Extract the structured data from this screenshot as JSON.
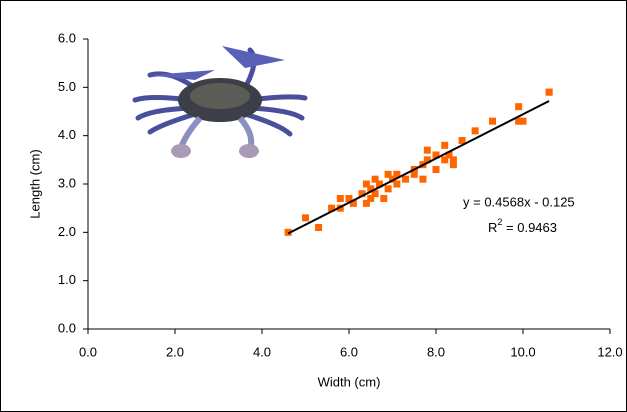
{
  "chart_data": {
    "type": "scatter",
    "x_label": "Width (cm)",
    "y_label": "Length (cm)",
    "x": [
      4.6,
      5.0,
      5.3,
      5.6,
      5.8,
      5.8,
      6.0,
      6.1,
      6.3,
      6.4,
      6.4,
      6.5,
      6.5,
      6.6,
      6.6,
      6.7,
      6.8,
      6.9,
      6.9,
      7.0,
      7.1,
      7.1,
      7.3,
      7.5,
      7.5,
      7.7,
      7.7,
      7.8,
      7.8,
      8.0,
      8.0,
      8.2,
      8.2,
      8.3,
      8.4,
      8.4,
      8.6,
      8.9,
      9.3,
      9.9,
      9.9,
      10.0,
      10.6,
      10.6
    ],
    "values": [
      2.0,
      2.3,
      2.1,
      2.5,
      2.5,
      2.7,
      2.7,
      2.6,
      2.8,
      2.6,
      3.0,
      2.7,
      2.9,
      3.1,
      2.8,
      3.0,
      2.7,
      3.2,
      2.9,
      3.1,
      3.0,
      3.2,
      3.1,
      3.3,
      3.2,
      3.1,
      3.4,
      3.7,
      3.5,
      3.3,
      3.6,
      3.8,
      3.5,
      3.6,
      3.4,
      3.5,
      3.9,
      4.1,
      4.3,
      4.6,
      4.3,
      4.3,
      4.9,
      4.9
    ],
    "color": "#ff6600",
    "trendline": {
      "slope": 0.4568,
      "intercept": -0.125,
      "color": "#000000",
      "equation": "y = 0.4568x - 0.125",
      "r2_base": "R",
      "r2_sup": "2",
      "r2_rest": " = 0.9463"
    },
    "xlim": [
      0,
      12
    ],
    "ylim": [
      0,
      6
    ],
    "xticks": [
      {
        "value": 0,
        "label": "0.0"
      },
      {
        "value": 2,
        "label": "2.0"
      },
      {
        "value": 4,
        "label": "4.0"
      },
      {
        "value": 6,
        "label": "6.0"
      },
      {
        "value": 8,
        "label": "8.0"
      },
      {
        "value": 10,
        "label": "10.0"
      },
      {
        "value": 12,
        "label": "12.0"
      }
    ],
    "yticks": [
      {
        "value": 0,
        "label": "0.0"
      },
      {
        "value": 1,
        "label": "1.0"
      },
      {
        "value": 2,
        "label": "2.0"
      },
      {
        "value": 3,
        "label": "3.0"
      },
      {
        "value": 4,
        "label": "4.0"
      },
      {
        "value": 5,
        "label": "5.0"
      },
      {
        "value": 6,
        "label": "6.0"
      }
    ],
    "grid": false
  }
}
